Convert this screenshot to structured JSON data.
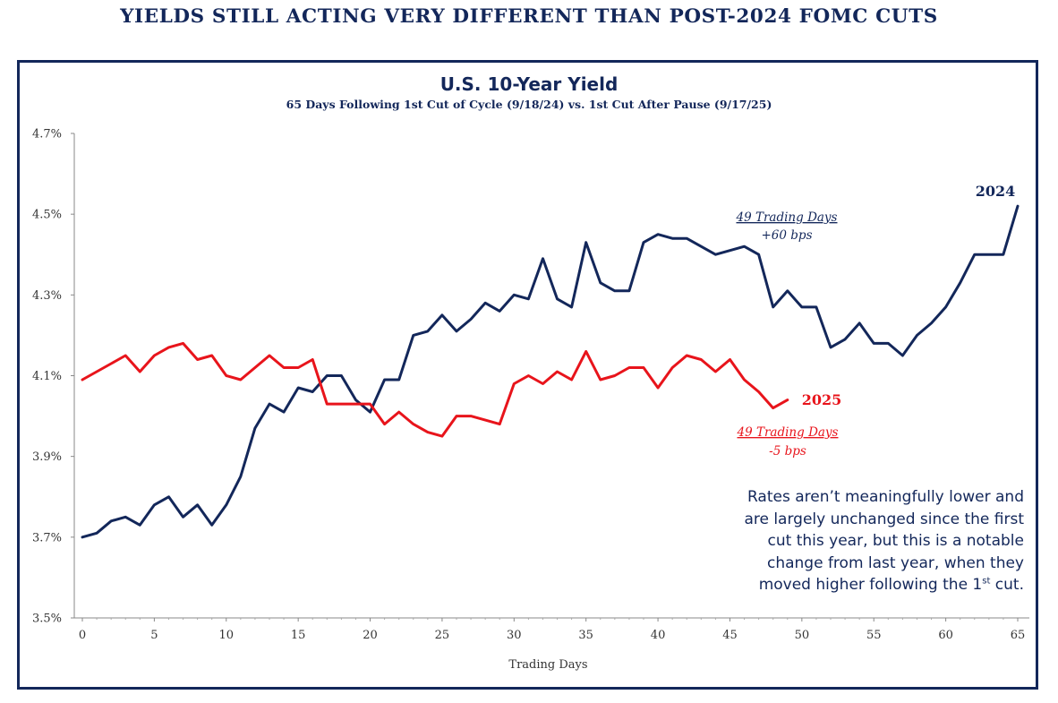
{
  "headline": "YIELDS STILL ACTING VERY DIFFERENT THAN POST-2024 FOMC CUTS",
  "note": {
    "lines": [
      "Rates aren’t meaningfully lower and",
      "are largely unchanged since the first",
      "cut this year, but this is a notable",
      "change from last year, when they"
    ],
    "last_line_prefix": "moved higher following the 1",
    "last_line_sup": "st",
    "last_line_suffix": " cut."
  },
  "colors": {
    "navy": "#13275a",
    "red": "#e8141b"
  },
  "chart_data": {
    "type": "line",
    "title": "U.S. 10-Year Yield",
    "subtitle": "65 Days Following 1st Cut of Cycle (9/18/24) vs. 1st Cut After Pause (9/17/25)",
    "xlabel": "Trading Days",
    "ylabel": "",
    "xlim": [
      0,
      65
    ],
    "ylim": [
      3.5,
      4.7
    ],
    "x_ticks": [
      0,
      5,
      10,
      15,
      20,
      25,
      30,
      35,
      40,
      45,
      50,
      55,
      60,
      65
    ],
    "y_ticks": [
      3.5,
      3.7,
      3.9,
      4.1,
      4.3,
      4.5,
      4.7
    ],
    "y_tick_labels": [
      "3.5%",
      "3.7%",
      "3.9%",
      "4.1%",
      "4.3%",
      "4.5%",
      "4.7%"
    ],
    "grid": false,
    "series": [
      {
        "name": "2024",
        "color": "#13275a",
        "values": [
          3.7,
          3.71,
          3.74,
          3.75,
          3.73,
          3.78,
          3.8,
          3.75,
          3.78,
          3.73,
          3.78,
          3.85,
          3.97,
          4.03,
          4.01,
          4.07,
          4.06,
          4.1,
          4.1,
          4.04,
          4.01,
          4.09,
          4.09,
          4.2,
          4.21,
          4.25,
          4.21,
          4.24,
          4.28,
          4.26,
          4.3,
          4.29,
          4.39,
          4.29,
          4.27,
          4.43,
          4.33,
          4.31,
          4.31,
          4.43,
          4.45,
          4.44,
          4.44,
          4.42,
          4.4,
          4.41,
          4.42,
          4.4,
          4.27,
          4.31,
          4.27,
          4.27,
          4.17,
          4.19,
          4.23,
          4.18,
          4.18,
          4.15,
          4.2,
          4.23,
          4.27,
          4.33,
          4.4,
          4.4,
          4.4,
          4.52
        ]
      },
      {
        "name": "2025",
        "color": "#e8141b",
        "values": [
          4.09,
          4.11,
          4.13,
          4.15,
          4.11,
          4.15,
          4.17,
          4.18,
          4.14,
          4.15,
          4.1,
          4.09,
          4.12,
          4.15,
          4.12,
          4.12,
          4.14,
          4.03,
          4.03,
          4.03,
          4.03,
          3.98,
          4.01,
          3.98,
          3.96,
          3.95,
          4.0,
          4.0,
          3.99,
          3.98,
          4.08,
          4.1,
          4.08,
          4.11,
          4.09,
          4.16,
          4.09,
          4.1,
          4.12,
          4.12,
          4.07,
          4.12,
          4.15,
          4.14,
          4.11,
          4.14,
          4.09,
          4.06,
          4.02,
          4.04
        ]
      }
    ],
    "annotations": [
      {
        "series": "2024",
        "label": "2024",
        "line1": "49 Trading Days",
        "line2": "+60 bps"
      },
      {
        "series": "2025",
        "label": "2025",
        "line1": "49 Trading Days",
        "line2": "-5 bps"
      }
    ]
  }
}
